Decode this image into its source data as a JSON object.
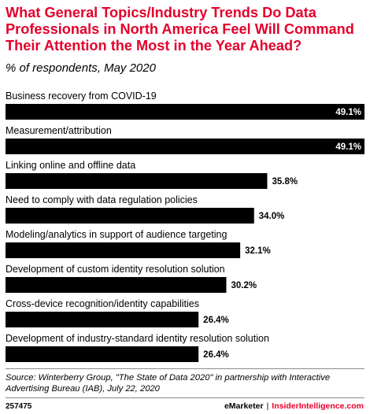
{
  "title": "What General Topics/Industry Trends Do Data Professionals in North America Feel Will Command Their Attention the Most in the Year Ahead?",
  "subtitle": "% of respondents, May 2020",
  "source": "Source: Winterberry Group, \"The State of Data 2020\" in partnership with Interactive Advertising Bureau (IAB), July 22, 2020",
  "footer": {
    "chart_id": "257475",
    "brand": "eMarketer",
    "separator": "|",
    "brand2": "InsiderIntelligence.com"
  },
  "colors": {
    "title": "#e4002b",
    "bar": "#000000",
    "brand2": "#e4002b"
  },
  "chart_data": {
    "type": "bar",
    "orientation": "horizontal",
    "categories": [
      "Business recovery from COVID-19",
      "Measurement/attribution",
      "Linking online and offline data",
      "Need to comply with data regulation policies",
      "Modeling/analytics in support of audience targeting",
      "Development of custom identity resolution solution",
      "Cross-device recognition/identity capabilities",
      "Development of industry-standard identity resolution solution"
    ],
    "values": [
      49.1,
      49.1,
      35.8,
      34.0,
      32.1,
      30.2,
      26.4,
      26.4
    ],
    "value_labels": [
      "49.1%",
      "49.1%",
      "35.8%",
      "34.0%",
      "32.1%",
      "30.2%",
      "26.4%",
      "26.4%"
    ],
    "xlim": [
      0,
      49.1
    ],
    "grid": false,
    "legend": "none"
  }
}
